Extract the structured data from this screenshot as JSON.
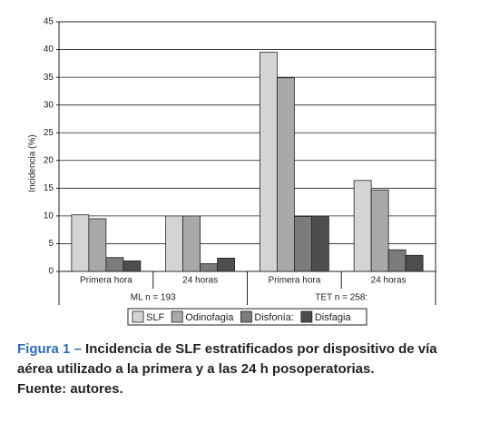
{
  "chart_data": {
    "type": "bar",
    "ylabel": "Incidencia (%)",
    "categories": [
      "Primera hora",
      "24 horas",
      "Primera hora",
      "24 horas"
    ],
    "groups": [
      "ML n = 193",
      "TET n = 258:"
    ],
    "series": [
      {
        "name": "SLF",
        "color": "#d4d4d4",
        "values": [
          10.2,
          10,
          39.5,
          16.4
        ]
      },
      {
        "name": "Odinofagia",
        "color": "#a9a9a9",
        "values": [
          9.5,
          10,
          34.9,
          14.7
        ]
      },
      {
        "name": "Disfonía:",
        "color": "#7b7b7b",
        "values": [
          2.5,
          1.4,
          9.9,
          3.9
        ]
      },
      {
        "name": "Disfagia",
        "color": "#4d4d4d",
        "values": [
          1.9,
          2.4,
          10,
          2.9
        ]
      }
    ],
    "ylim": [
      0,
      45
    ],
    "yticks": [
      0,
      5,
      10,
      15,
      20,
      25,
      30,
      35,
      40,
      45
    ],
    "grid": true
  },
  "caption": {
    "label": "Figura 1 –",
    "text": "Incidencia de SLF estratificados por dispositivo de vía aérea utilizado a la primera y a las 24 h posoperatorias.",
    "source": "Fuente: autores."
  }
}
